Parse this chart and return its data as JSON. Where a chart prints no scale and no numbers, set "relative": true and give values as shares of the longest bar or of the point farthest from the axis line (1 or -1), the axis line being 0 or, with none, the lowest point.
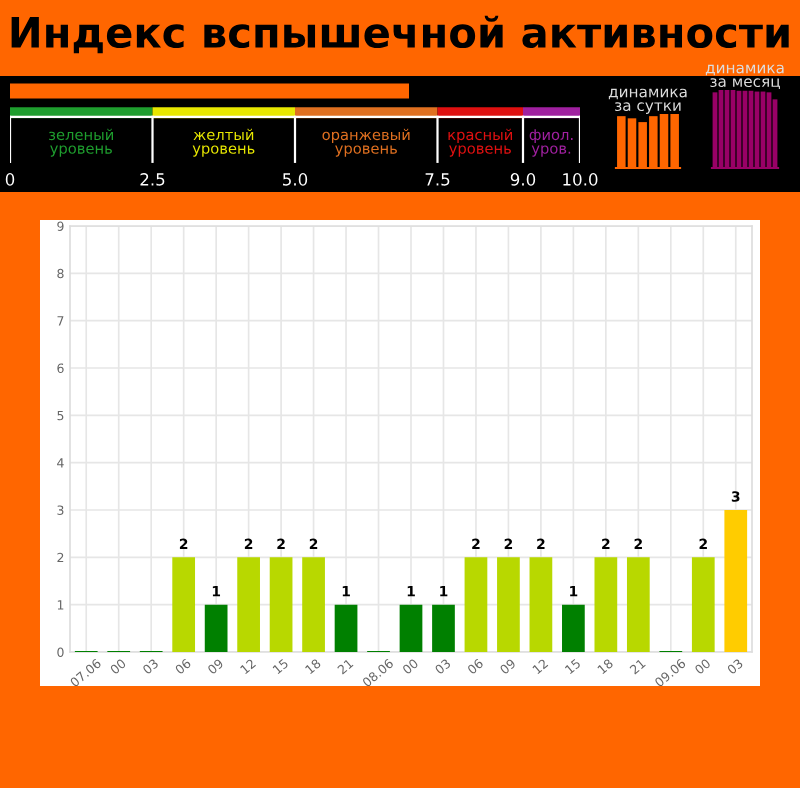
{
  "chart_data": [
    {
      "type": "bar",
      "title": "Индекс вспышечной активности",
      "orientation": "horizontal",
      "categories": [
        null
      ],
      "values": [
        7.0
      ],
      "color": "#ff6600",
      "xlim": [
        0,
        10
      ],
      "xticks": [
        0,
        2.5,
        {
          "value": 5,
          "label": "5.0"
        },
        7.5,
        {
          "value": 9,
          "label": "9.0"
        },
        {
          "value": 10,
          "label": "10.0"
        }
      ],
      "annotations": [
        "зеленый\nуровень",
        "желтый\nуровень",
        "оранжевый\nуровень",
        "красный\nуровень",
        "фиол.\nуров."
      ]
    },
    {
      "type": "bar",
      "title": "динамика\nза сутки",
      "relative": true,
      "categories": [
        null,
        null,
        null,
        null,
        null,
        null
      ],
      "values": [
        0.96,
        0.92,
        0.85,
        0.96,
        1,
        1
      ],
      "color": "#ff6600"
    },
    {
      "type": "bar",
      "title": "динамика\nза месяц",
      "relative": true,
      "categories": [
        null,
        null,
        null,
        null,
        null,
        null,
        null,
        null,
        null,
        null,
        null
      ],
      "values": [
        0.97,
        1,
        1,
        1,
        0.99,
        0.99,
        0.99,
        0.98,
        0.98,
        0.97,
        0.88
      ],
      "color": "#990066"
    },
    {
      "type": "bar",
      "categories": [
        "07.06",
        "00",
        "03",
        "06",
        "09",
        "12",
        "15",
        "18",
        "21",
        "08.06",
        "00",
        "03",
        "06",
        "09",
        "12",
        "15",
        "18",
        "21",
        "09.06",
        "00",
        "03"
      ],
      "values": [
        0,
        0,
        0,
        2,
        1,
        2,
        2,
        2,
        1,
        0,
        1,
        1,
        2,
        2,
        2,
        1,
        2,
        2,
        0,
        2,
        3
      ],
      "colors": [
        "#008000",
        "#008000",
        "#008000",
        "#b8d800",
        "#008000",
        "#b8d800",
        "#b8d800",
        "#b8d800",
        "#008000",
        "#008000",
        "#008000",
        "#008000",
        "#b8d800",
        "#b8d800",
        "#b8d800",
        "#008000",
        "#b8d800",
        "#b8d800",
        "#008000",
        "#b8d800",
        "#ffcc00"
      ],
      "value_labels": [
        null,
        null,
        null,
        "2",
        "1",
        "2",
        "2",
        "2",
        "1",
        null,
        "1",
        "1",
        "2",
        "2",
        "2",
        "1",
        "2",
        "2",
        null,
        "2",
        "3"
      ],
      "ylim": [
        0,
        9
      ],
      "yticks": [
        0,
        1,
        2,
        3,
        4,
        5,
        6,
        7,
        8,
        9
      ],
      "grid": true
    }
  ]
}
